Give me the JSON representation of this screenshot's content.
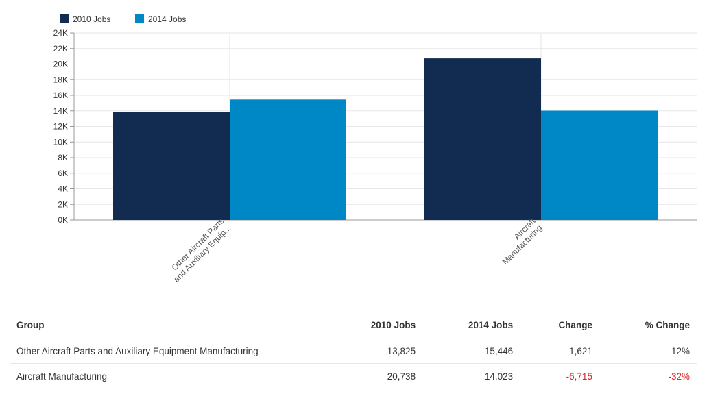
{
  "chart_data": {
    "type": "bar",
    "categories": [
      "Other Aircraft Parts and Auxiliary Equip...",
      "Aircraft Manufacturing"
    ],
    "category_label_lines": [
      [
        "Other Aircraft Parts",
        "and Auxiliary Equip..."
      ],
      [
        "Aircraft",
        "Manufacturing"
      ]
    ],
    "series": [
      {
        "name": "2010 Jobs",
        "values": [
          13825,
          20738
        ],
        "color": "#122b50"
      },
      {
        "name": "2014 Jobs",
        "values": [
          15446,
          14023
        ],
        "color": "#0088c6"
      }
    ],
    "ylim": [
      0,
      24000
    ],
    "yticks": [
      0,
      2000,
      4000,
      6000,
      8000,
      10000,
      12000,
      14000,
      16000,
      18000,
      20000,
      22000,
      24000
    ],
    "ytick_labels": [
      "0K",
      "2K",
      "4K",
      "6K",
      "8K",
      "10K",
      "12K",
      "14K",
      "16K",
      "18K",
      "20K",
      "22K",
      "24K"
    ],
    "grid": true,
    "legend_position": "top-left"
  },
  "table": {
    "headers": {
      "group": "Group",
      "jobs2010": "2010 Jobs",
      "jobs2014": "2014 Jobs",
      "change": "Change",
      "pct": "% Change"
    },
    "rows": [
      {
        "group": "Other Aircraft Parts and Auxiliary Equipment Manufacturing",
        "jobs2010": "13,825",
        "jobs2014": "15,446",
        "change": "1,621",
        "pct": "12%"
      },
      {
        "group": "Aircraft Manufacturing",
        "jobs2010": "20,738",
        "jobs2014": "14,023",
        "change": "-6,715",
        "pct": "-32%"
      }
    ]
  }
}
